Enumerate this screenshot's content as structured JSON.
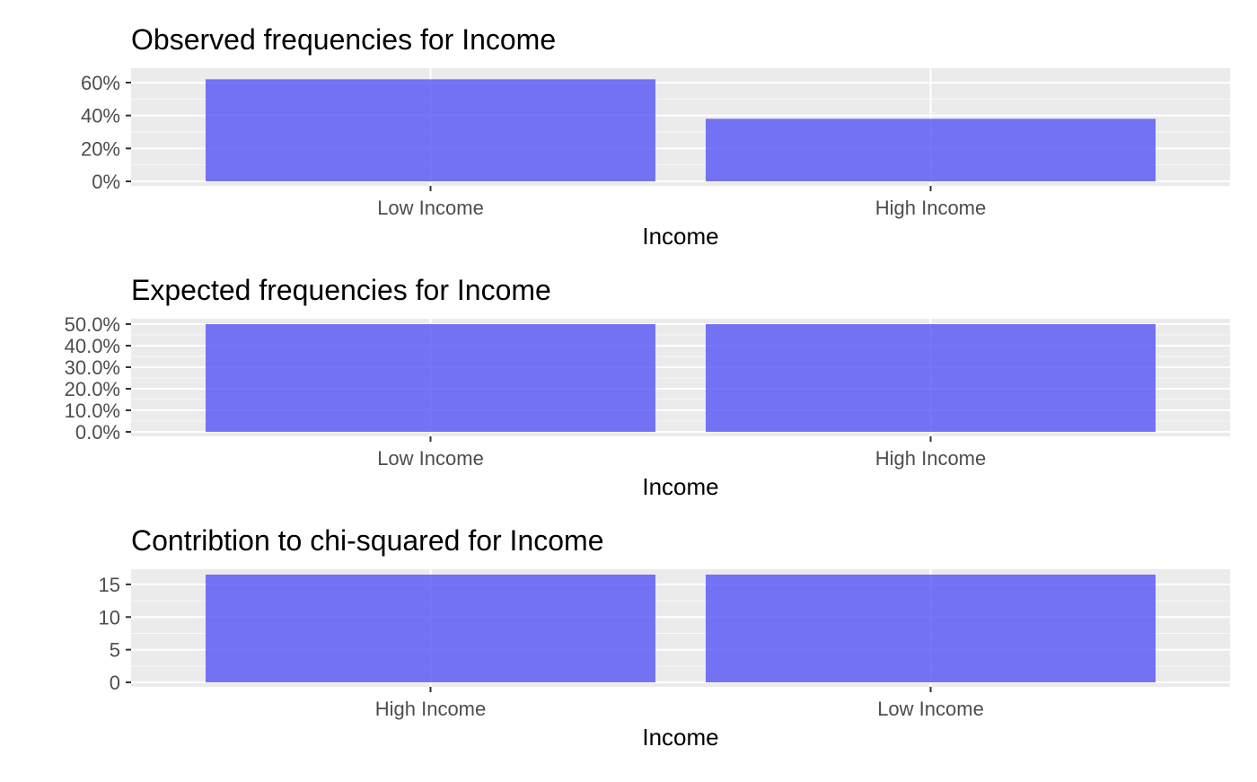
{
  "colors": {
    "bar": "#5050f5",
    "panel": "#ebebeb",
    "grid_major": "#ffffff",
    "grid_minor": "#f7f7f7",
    "tick": "#333333",
    "tick_text": "#4d4d4d"
  },
  "chart_data": [
    {
      "type": "bar",
      "title": "Observed frequencies for Income",
      "xlabel": "Income",
      "ylabel": "",
      "categories": [
        "Low Income",
        "High Income"
      ],
      "values": [
        0.62,
        0.38
      ],
      "ylim": [
        0,
        0.66
      ],
      "yticks": [
        0,
        0.2,
        0.4,
        0.6
      ],
      "ytick_labels": [
        "0%",
        "20%",
        "40%",
        "60%"
      ],
      "grid": true
    },
    {
      "type": "bar",
      "title": "Expected frequencies for Income",
      "xlabel": "Income",
      "ylabel": "",
      "categories": [
        "Low Income",
        "High Income"
      ],
      "values": [
        0.5,
        0.5
      ],
      "ylim": [
        0,
        0.5
      ],
      "yticks": [
        0,
        0.1,
        0.2,
        0.3,
        0.4,
        0.5
      ],
      "ytick_labels": [
        "0.0%",
        "10.0%",
        "20.0%",
        "30.0%",
        "40.0%",
        "50.0%"
      ],
      "grid": true
    },
    {
      "type": "bar",
      "title": "Contribtion to chi-squared for Income",
      "xlabel": "Income",
      "ylabel": "",
      "categories": [
        "High Income",
        "Low Income"
      ],
      "values": [
        16.5,
        16.5
      ],
      "ylim": [
        0,
        16.5
      ],
      "yticks": [
        0,
        5,
        10,
        15
      ],
      "ytick_labels": [
        "0",
        "5",
        "10",
        "15"
      ],
      "grid": true
    }
  ]
}
